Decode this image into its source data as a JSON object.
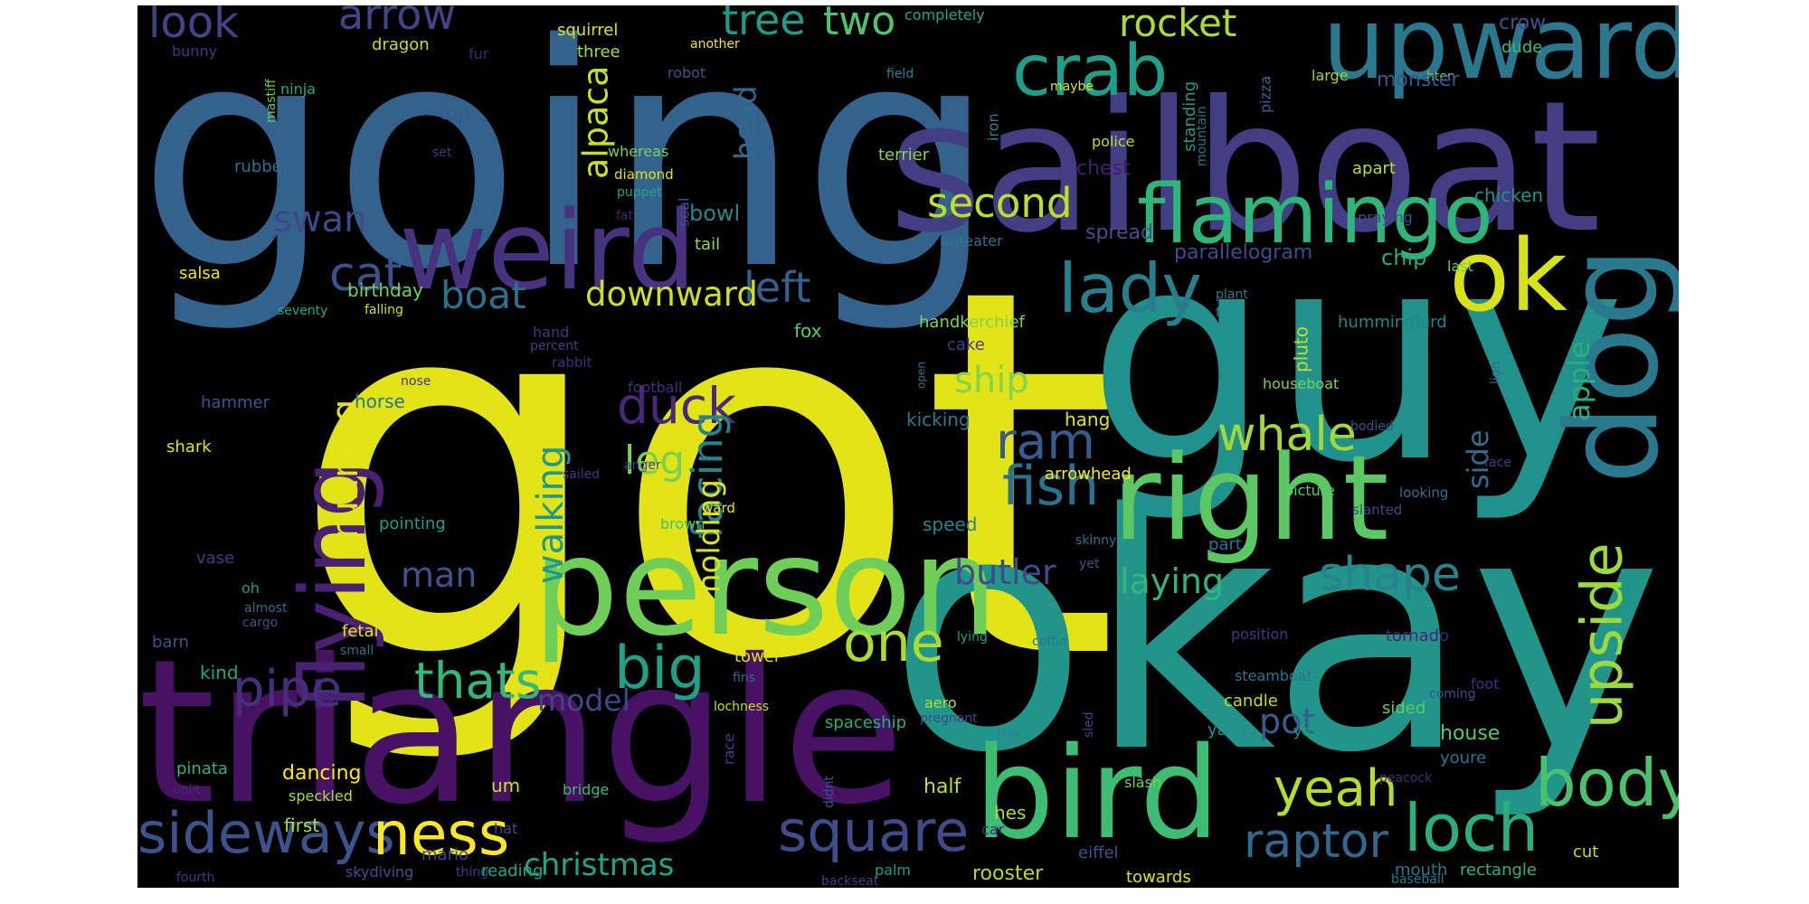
{
  "words": [
    {
      "text": "got",
      "color": "#e2e418"
    },
    {
      "text": "okay",
      "color": "#22958b"
    },
    {
      "text": "going",
      "color": "#33638d"
    },
    {
      "text": "sailboat",
      "color": "#433d84"
    },
    {
      "text": "guy",
      "color": "#21918c"
    },
    {
      "text": "triangle",
      "color": "#471164"
    },
    {
      "text": "person",
      "color": "#6ece58"
    },
    {
      "text": "bird",
      "color": "#3dbc74"
    },
    {
      "text": "right",
      "color": "#5cc863"
    },
    {
      "text": "dog",
      "color": "#2a788e"
    },
    {
      "text": "weird",
      "color": "#46327e"
    },
    {
      "text": "upward",
      "color": "#2a788e"
    },
    {
      "text": "flying",
      "color": "#482173"
    },
    {
      "text": "flamingo",
      "color": "#2fb47c"
    },
    {
      "text": "ok",
      "color": "#d8e219"
    },
    {
      "text": "crab",
      "color": "#1f9e89"
    },
    {
      "text": "lady",
      "color": "#277f8e"
    },
    {
      "text": "body",
      "color": "#4ac16d"
    },
    {
      "text": "loch",
      "color": "#29af7f"
    },
    {
      "text": "square",
      "color": "#3e4c8a"
    },
    {
      "text": "sideways",
      "color": "#3b528b"
    },
    {
      "text": "ness",
      "color": "#fde725"
    },
    {
      "text": "one",
      "color": "#addc30"
    },
    {
      "text": "big",
      "color": "#1fa188"
    },
    {
      "text": "upside",
      "color": "#9bd93c"
    },
    {
      "text": "yeah",
      "color": "#b5de2b"
    },
    {
      "text": "raptor",
      "color": "#31688e"
    },
    {
      "text": "fish",
      "color": "#2c728e"
    },
    {
      "text": "shape",
      "color": "#25848e"
    },
    {
      "text": "duck",
      "color": "#482878"
    },
    {
      "text": "ram",
      "color": "#365c8d"
    },
    {
      "text": "whale",
      "color": "#a0da39"
    },
    {
      "text": "cat",
      "color": "#3b528b"
    },
    {
      "text": "pipe",
      "color": "#472d7b"
    },
    {
      "text": "thats",
      "color": "#35b779"
    },
    {
      "text": "tree",
      "color": "#1e9c89"
    },
    {
      "text": "two",
      "color": "#50c46a"
    },
    {
      "text": "rocket",
      "color": "#aadc32"
    },
    {
      "text": "look",
      "color": "#414487"
    },
    {
      "text": "arrow",
      "color": "#414487"
    },
    {
      "text": "second",
      "color": "#bddf26"
    },
    {
      "text": "swan",
      "color": "#3f4788"
    },
    {
      "text": "left",
      "color": "#355f8d"
    },
    {
      "text": "boat",
      "color": "#2d708e"
    },
    {
      "text": "downward",
      "color": "#d0e11c"
    },
    {
      "text": "ship",
      "color": "#84d44b"
    },
    {
      "text": "leg",
      "color": "#7ad151"
    },
    {
      "text": "running",
      "color": "#e5e419"
    },
    {
      "text": "walking",
      "color": "#1f988b"
    },
    {
      "text": "facing",
      "color": "#26828e"
    },
    {
      "text": "alpaca",
      "color": "#c8e020"
    },
    {
      "text": "head",
      "color": "#31688e"
    },
    {
      "text": "holding",
      "color": "#dde318"
    },
    {
      "text": "butler",
      "color": "#3e4a89"
    },
    {
      "text": "laying",
      "color": "#31b57b"
    },
    {
      "text": "man",
      "color": "#3b528b"
    },
    {
      "text": "christmas",
      "color": "#20a486"
    },
    {
      "text": "model",
      "color": "#3f4788"
    },
    {
      "text": "pot",
      "color": "#355e8d"
    },
    {
      "text": "side",
      "color": "#2f6c8e"
    },
    {
      "text": "apple",
      "color": "#29af7f"
    },
    {
      "text": "squirrel",
      "color": "#dde318"
    },
    {
      "text": "completely",
      "color": "#22a785"
    },
    {
      "text": "crow",
      "color": "#3a548c"
    },
    {
      "text": "dude",
      "color": "#3dbc74"
    },
    {
      "text": "bunny",
      "color": "#46337f"
    },
    {
      "text": "dragon",
      "color": "#bddf26"
    },
    {
      "text": "fur",
      "color": "#482374"
    },
    {
      "text": "three",
      "color": "#a5db36"
    },
    {
      "text": "another",
      "color": "#f1e51d"
    },
    {
      "text": "robot",
      "color": "#3b528b"
    },
    {
      "text": "field",
      "color": "#26828e"
    },
    {
      "text": "maybe",
      "color": "#dce319"
    },
    {
      "text": "large",
      "color": "#98d83e"
    },
    {
      "text": "hten",
      "color": "#70cf57"
    },
    {
      "text": "monster",
      "color": "#39568c"
    },
    {
      "text": "mastiff",
      "color": "#6ccd5a"
    },
    {
      "text": "ninja",
      "color": "#25ac82"
    },
    {
      "text": "top",
      "color": "#38598c"
    },
    {
      "text": "iron",
      "color": "#23898e"
    },
    {
      "text": "pizza",
      "color": "#33638d"
    },
    {
      "text": "mountain",
      "color": "#2e6f8e"
    },
    {
      "text": "standing",
      "color": "#1f9a8a"
    },
    {
      "text": "set",
      "color": "#46337f"
    },
    {
      "text": "whereas",
      "color": "#75d054"
    },
    {
      "text": "rubber",
      "color": "#2e6e8e"
    },
    {
      "text": "terrier",
      "color": "#86d549"
    },
    {
      "text": "police",
      "color": "#bade28"
    },
    {
      "text": "diamond",
      "color": "#dfe318"
    },
    {
      "text": "puppet",
      "color": "#21a585"
    },
    {
      "text": "chest",
      "color": "#481c6e"
    },
    {
      "text": "apart",
      "color": "#bddf26"
    },
    {
      "text": "chicken",
      "color": "#21918c"
    },
    {
      "text": "bowl",
      "color": "#24878e"
    },
    {
      "text": "fat",
      "color": "#482071"
    },
    {
      "text": "seal",
      "color": "#3b528b"
    },
    {
      "text": "praying",
      "color": "#3d4e8a"
    },
    {
      "text": "anteater",
      "color": "#2c738e"
    },
    {
      "text": "spread",
      "color": "#3b528b"
    },
    {
      "text": "tail",
      "color": "#98d83e"
    },
    {
      "text": "parallelogram",
      "color": "#3e4c8a"
    },
    {
      "text": "chip",
      "color": "#25ab82"
    },
    {
      "text": "salsa",
      "color": "#ece51b"
    },
    {
      "text": "birthday",
      "color": "#74d055"
    },
    {
      "text": "last",
      "color": "#6ece58"
    },
    {
      "text": "seventy",
      "color": "#21a685"
    },
    {
      "text": "falling",
      "color": "#cae11f"
    },
    {
      "text": "plant",
      "color": "#2a788e"
    },
    {
      "text": "fine",
      "color": "#21918c"
    },
    {
      "text": "hummingbird",
      "color": "#25848e"
    },
    {
      "text": "fox",
      "color": "#5ec962"
    },
    {
      "text": "handkerchief",
      "color": "#7fd34e"
    },
    {
      "text": "hand",
      "color": "#46337f"
    },
    {
      "text": "percent",
      "color": "#433e85"
    },
    {
      "text": "rabbit",
      "color": "#472d7b"
    },
    {
      "text": "pluto",
      "color": "#c2df23"
    },
    {
      "text": "cake",
      "color": "#433e85"
    },
    {
      "text": "lion",
      "color": "#306a8e"
    },
    {
      "text": "nose",
      "color": "#443983"
    },
    {
      "text": "football",
      "color": "#472e7c"
    },
    {
      "text": "open",
      "color": "#2a768e"
    },
    {
      "text": "houseboat",
      "color": "#7ad151"
    },
    {
      "text": "hammer",
      "color": "#39568c"
    },
    {
      "text": "horse",
      "color": "#2b758e"
    },
    {
      "text": "kicking",
      "color": "#29798e"
    },
    {
      "text": "hang",
      "color": "#e2e418"
    },
    {
      "text": "bodied",
      "color": "#3b518b"
    },
    {
      "text": "shark",
      "color": "#dde318"
    },
    {
      "text": "face",
      "color": "#453781"
    },
    {
      "text": "anger",
      "color": "#3e4989"
    },
    {
      "text": "sailed",
      "color": "#46337f"
    },
    {
      "text": "ward",
      "color": "#e7e419"
    },
    {
      "text": "arrowhead",
      "color": "#fde725"
    },
    {
      "text": "picture",
      "color": "#5ec962"
    },
    {
      "text": "looking",
      "color": "#2d708e"
    },
    {
      "text": "slanted",
      "color": "#3f4788"
    },
    {
      "text": "pointing",
      "color": "#1e9b8a"
    },
    {
      "text": "brown",
      "color": "#44bf70"
    },
    {
      "text": "speed",
      "color": "#26828e"
    },
    {
      "text": "skinny",
      "color": "#2c728e"
    },
    {
      "text": "part",
      "color": "#2b748e"
    },
    {
      "text": "yet",
      "color": "#3b528b"
    },
    {
      "text": "vase",
      "color": "#453882"
    },
    {
      "text": "oh",
      "color": "#1f9e89"
    },
    {
      "text": "almost",
      "color": "#306a8e"
    },
    {
      "text": "cargo",
      "color": "#3b528b"
    },
    {
      "text": "fetal",
      "color": "#e2e418"
    },
    {
      "text": "small",
      "color": "#2c728e"
    },
    {
      "text": "lying",
      "color": "#1fa188"
    },
    {
      "text": "coffin",
      "color": "#2b758e"
    },
    {
      "text": "position",
      "color": "#453581"
    },
    {
      "text": "tornado",
      "color": "#482374"
    },
    {
      "text": "barn",
      "color": "#3b528b"
    },
    {
      "text": "kind",
      "color": "#21a685"
    },
    {
      "text": "tower",
      "color": "#dde318"
    },
    {
      "text": "fins",
      "color": "#2f6c8e"
    },
    {
      "text": "steamboat",
      "color": "#2c728e"
    },
    {
      "text": "foot",
      "color": "#472d7b"
    },
    {
      "text": "coming",
      "color": "#3b528b"
    },
    {
      "text": "aero",
      "color": "#b5de2b"
    },
    {
      "text": "pregnant",
      "color": "#3f4788"
    },
    {
      "text": "bow",
      "color": "#25848e"
    },
    {
      "text": "candle",
      "color": "#bddf26"
    },
    {
      "text": "sled",
      "color": "#3f4788"
    },
    {
      "text": "sided",
      "color": "#5ec962"
    },
    {
      "text": "lochness",
      "color": "#c2df23"
    },
    {
      "text": "spaceship",
      "color": "#25ac82"
    },
    {
      "text": "yacht",
      "color": "#21918c"
    },
    {
      "text": "yes",
      "color": "#1f9a8a"
    },
    {
      "text": "house",
      "color": "#5cc863"
    },
    {
      "text": "youre",
      "color": "#2e6e8e"
    },
    {
      "text": "race",
      "color": "#433e85"
    },
    {
      "text": "peacock",
      "color": "#482878"
    },
    {
      "text": "pinata",
      "color": "#2fb47c"
    },
    {
      "text": "dancing",
      "color": "#fde725"
    },
    {
      "text": "speckled",
      "color": "#addc30"
    },
    {
      "text": "unlit",
      "color": "#482878"
    },
    {
      "text": "bridge",
      "color": "#3dbc74"
    },
    {
      "text": "um",
      "color": "#c8e020"
    },
    {
      "text": "didnt",
      "color": "#3b528b"
    },
    {
      "text": "half",
      "color": "#bddf26"
    },
    {
      "text": "hes",
      "color": "#addc30"
    },
    {
      "text": "slash",
      "color": "#75d054"
    },
    {
      "text": "car",
      "color": "#482878"
    },
    {
      "text": "first",
      "color": "#aadc32"
    },
    {
      "text": "hat",
      "color": "#3e4a89"
    },
    {
      "text": "mario",
      "color": "#3e4a89"
    },
    {
      "text": "thing",
      "color": "#443a83"
    },
    {
      "text": "skydiving",
      "color": "#3b518b"
    },
    {
      "text": "fourth",
      "color": "#46337f"
    },
    {
      "text": "reading",
      "color": "#22a785"
    },
    {
      "text": "palm",
      "color": "#1e9b8a"
    },
    {
      "text": "rooster",
      "color": "#addc30"
    },
    {
      "text": "eiffel",
      "color": "#3b528b"
    },
    {
      "text": "towards",
      "color": "#dde318"
    },
    {
      "text": "backseat",
      "color": "#433e85"
    },
    {
      "text": "baseball",
      "color": "#2a788e"
    },
    {
      "text": "mouth",
      "color": "#2a788e"
    },
    {
      "text": "rectangle",
      "color": "#2fb47c"
    },
    {
      "text": "cut",
      "color": "#bddf26"
    }
  ]
}
